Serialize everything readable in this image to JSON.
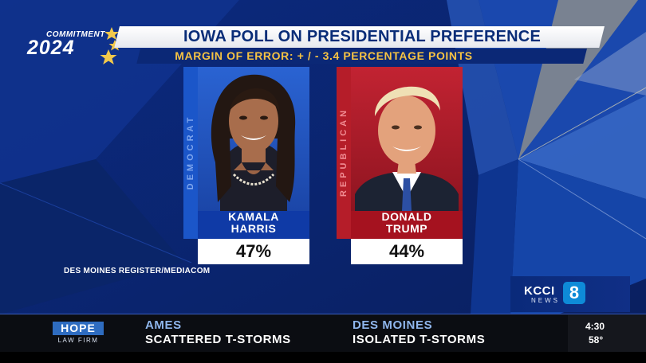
{
  "logo": {
    "top_text": "COMMITMENT",
    "year": "2024"
  },
  "header": {
    "title": "IOWA POLL ON PRESIDENTIAL PREFERENCE",
    "subtitle": "MARGIN OF ERROR: + / - 3.4 PERCENTAGE POINTS"
  },
  "candidates": [
    {
      "party": "DEMOCRAT",
      "first": "KAMALA",
      "last": "HARRIS",
      "percent": "47%",
      "color": "#1b56c9"
    },
    {
      "party": "REPUBLICAN",
      "first": "DONALD",
      "last": "TRUMP",
      "percent": "44%",
      "color": "#b51d29"
    }
  ],
  "source": "DES MOINES REGISTER/MEDIACOM",
  "station": {
    "name": "KCCI",
    "sub": "NEWS",
    "channel": "8"
  },
  "ticker": {
    "sponsor": {
      "name": "HOPE",
      "sub": "LAW FIRM"
    },
    "weather": [
      {
        "city": "AMES",
        "condition": "SCATTERED T-STORMS"
      },
      {
        "city": "DES MOINES",
        "condition": "ISOLATED T-STORMS"
      }
    ],
    "time": "4:30",
    "temperature": "58°"
  }
}
